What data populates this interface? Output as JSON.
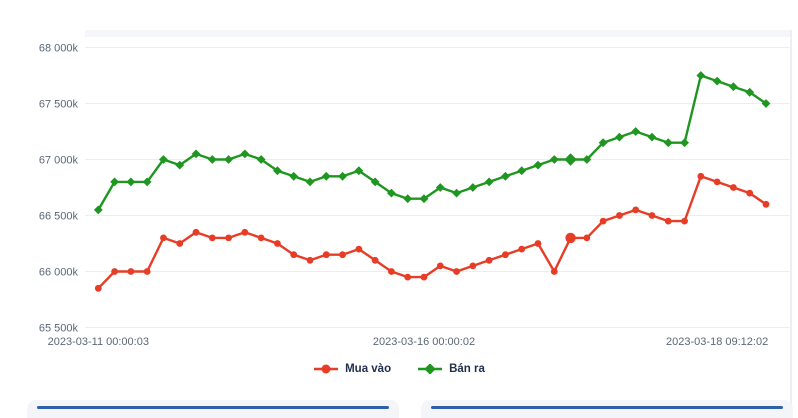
{
  "chart_data": {
    "type": "line",
    "title": "",
    "x_tick_labels": [
      "2023-03-11 00:00:03",
      "2023-03-16 00:00:02",
      "2023-03-18 09:12:02"
    ],
    "x_tick_indices": [
      0,
      20,
      38
    ],
    "y_tick_labels": [
      "68 000k",
      "67 500k",
      "67 000k",
      "66 500k",
      "66 000k",
      "65 500k"
    ],
    "ylim": [
      65500,
      68000
    ],
    "y_tick_step": 500,
    "grid": true,
    "legend_position": "bottom",
    "highlight_index": 29,
    "grid_color": "#ededed",
    "axis_text_color": "#5c6777",
    "legend_text_color": "#22304e",
    "series": [
      {
        "name": "Mua vào",
        "color": "#e73d27",
        "marker": "circle",
        "values": [
          65850,
          66000,
          66000,
          66000,
          66300,
          66250,
          66350,
          66300,
          66300,
          66350,
          66300,
          66250,
          66150,
          66100,
          66150,
          66150,
          66200,
          66100,
          66000,
          65950,
          65950,
          66050,
          66000,
          66050,
          66100,
          66150,
          66200,
          66250,
          66000,
          66300,
          66300,
          66450,
          66500,
          66550,
          66500,
          66450,
          66450,
          66850,
          66800,
          66750,
          66700,
          66600
        ]
      },
      {
        "name": "Bán ra",
        "color": "#1e9620",
        "marker": "diamond",
        "values": [
          66550,
          66800,
          66800,
          66800,
          67000,
          66950,
          67050,
          67000,
          67000,
          67050,
          67000,
          66900,
          66850,
          66800,
          66850,
          66850,
          66900,
          66800,
          66700,
          66650,
          66650,
          66750,
          66700,
          66750,
          66800,
          66850,
          66900,
          66950,
          67000,
          67000,
          67000,
          67150,
          67200,
          67250,
          67200,
          67150,
          67150,
          67750,
          67700,
          67650,
          67600,
          67500
        ]
      }
    ]
  },
  "bottom_cards": {
    "accent_color": "#3160ab"
  }
}
